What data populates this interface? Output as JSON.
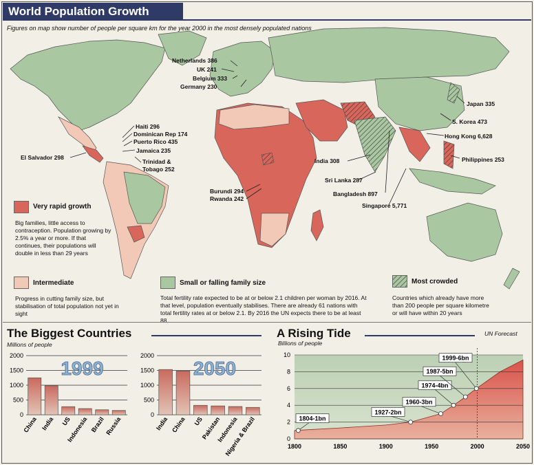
{
  "header": {
    "title": "World Population Growth",
    "subtitle": "Figures on map show number of people per square km for the year 2000 in the most densely populated nations"
  },
  "map_labels": {
    "netherlands": "Netherlands 386",
    "uk": "UK 241",
    "belgium": "Belgium 333",
    "germany": "Germany 230",
    "japan": "Japan 335",
    "s_korea": "S. Korea 473",
    "hong_kong": "Hong Kong 6,628",
    "philippines": "Philippines 253",
    "haiti": "Haiti 296",
    "dominican": "Dominican Rep 174",
    "puerto_rico": "Puerto Rico 435",
    "jamaica": "Jamaica 235",
    "trinidad": "Trinidad & Tobago 252",
    "el_salvador": "El Salvador 298",
    "india": "India 308",
    "sri_lanka": "Sri Lanka 287",
    "bangladesh": "Bangladesh 897",
    "singapore": "Singapore 5,771",
    "burundi": "Burundi 294",
    "rwanda": "Rwanda 242"
  },
  "legend": {
    "very_rapid": {
      "title": "Very rapid growth",
      "desc": "Big families, little access to contraception. Population growing by 2.5% a year or more. If that continues, their populations will double in less than 29 years",
      "color": "#d9665a"
    },
    "intermediate": {
      "title": "Intermediate",
      "desc": "Progress in cutting family size, but stabilisation of total population not yet in sight",
      "color": "#f2c9b6"
    },
    "small": {
      "title": "Small or falling family size",
      "desc": "Total fertility rate expected to be at or below 2.1 children per woman by 2016. At that level, population eventually stabilises. There are already 61 nations with total fertility rates at or below 2.1. By 2016 the UN expects there to be at least 88",
      "color": "#a9c7a0"
    },
    "crowded": {
      "title": "Most crowded",
      "desc": "Countries which already have more than 200 people per square kilometre or will have within 20 years"
    }
  },
  "biggest": {
    "title": "The Biggest Countries",
    "ylabel": "Millions of people"
  },
  "tide": {
    "title": "A Rising Tide",
    "ylabel": "Billions of people",
    "forecast": "UN Forecast"
  },
  "chart_data": [
    {
      "type": "bar",
      "title": "1999",
      "categories": [
        "China",
        "India",
        "US",
        "Indonesia",
        "Brazil",
        "Russia"
      ],
      "values": [
        1250,
        980,
        275,
        210,
        170,
        147
      ],
      "ylim": [
        0,
        2000
      ],
      "yticks": [
        0,
        500,
        1000,
        1500,
        2000
      ]
    },
    {
      "type": "bar",
      "title": "2050",
      "categories": [
        "India",
        "China",
        "US",
        "Pakistan",
        "Indonesia",
        "Nigeria & Brazil"
      ],
      "values": [
        1530,
        1480,
        320,
        300,
        280,
        250
      ],
      "ylim": [
        0,
        2000
      ],
      "yticks": [
        0,
        500,
        1000,
        1500,
        2000
      ]
    },
    {
      "type": "area",
      "title": "A Rising Tide",
      "ylabel": "Billions of people",
      "x": [
        1800,
        1850,
        1900,
        1927,
        1960,
        1974,
        1987,
        1999,
        2025,
        2050
      ],
      "y": [
        1,
        1.3,
        1.65,
        2,
        3,
        4,
        5,
        6,
        8,
        9.4
      ],
      "xlim": [
        1800,
        2050
      ],
      "ylim": [
        0,
        10
      ],
      "xticks": [
        1800,
        1850,
        1900,
        1950,
        2000,
        2050
      ],
      "yticks": [
        0,
        2,
        4,
        6,
        8,
        10
      ],
      "annotations": [
        {
          "x": 1804,
          "y": 1,
          "text": "1804-1bn"
        },
        {
          "x": 1927,
          "y": 2,
          "text": "1927-2bn"
        },
        {
          "x": 1960,
          "y": 3,
          "text": "1960-3bn"
        },
        {
          "x": 1974,
          "y": 4,
          "text": "1974-4bn"
        },
        {
          "x": 1987,
          "y": 5,
          "text": "1987-5bn"
        },
        {
          "x": 1999,
          "y": 6,
          "text": "1999-6bn"
        }
      ]
    }
  ]
}
